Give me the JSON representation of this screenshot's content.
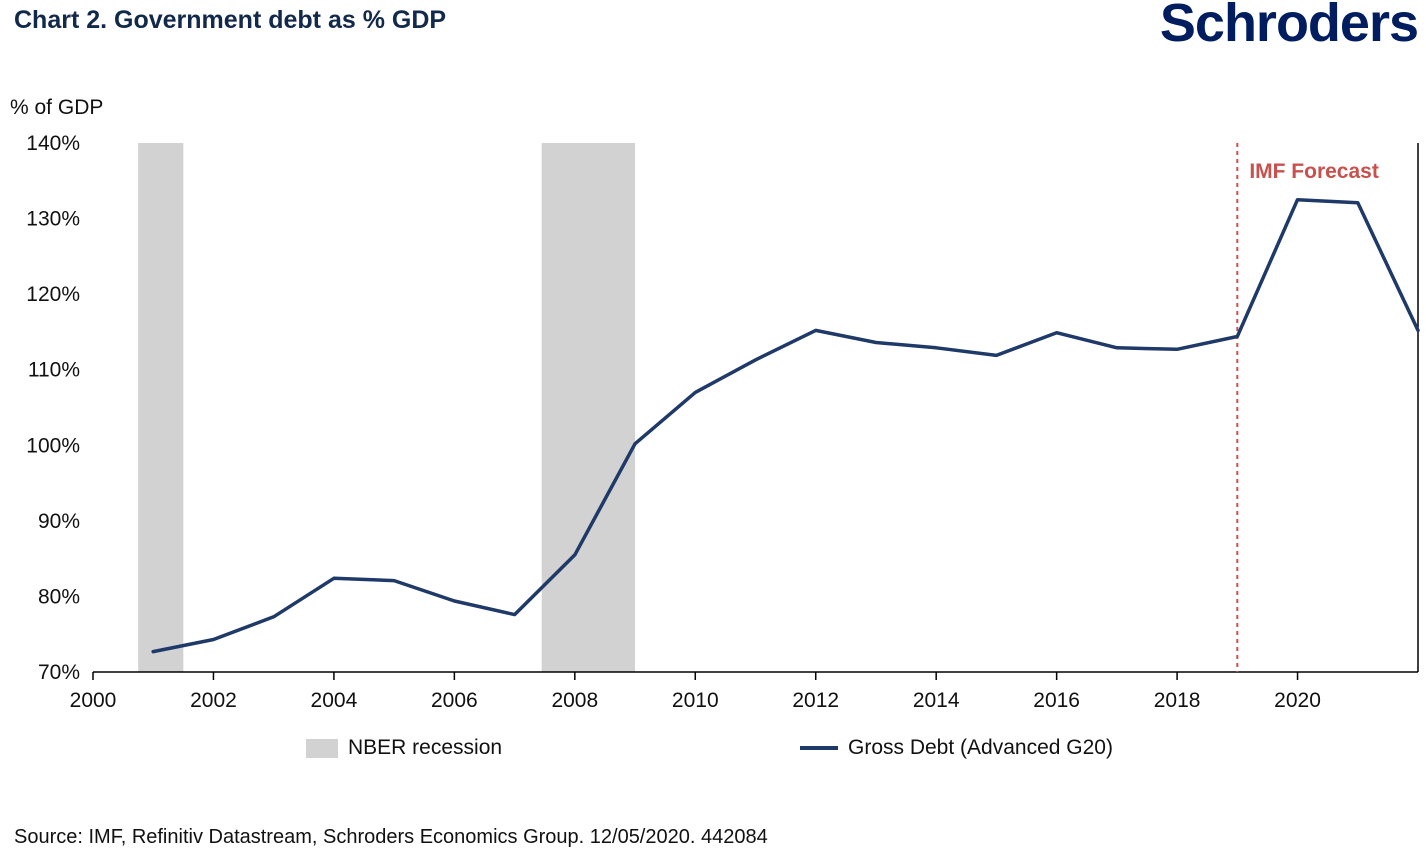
{
  "header": {
    "title": "Chart 2. Government debt as % GDP",
    "logo": "Schroders"
  },
  "chart_data": {
    "type": "line",
    "title": "Chart 2. Government debt as % GDP",
    "ylabel": "% of GDP",
    "xlabel": "",
    "xlim": [
      2000,
      2022
    ],
    "ylim": [
      70,
      140
    ],
    "y_ticks": [
      70,
      80,
      90,
      100,
      110,
      120,
      130,
      140
    ],
    "x_ticks": [
      2000,
      2002,
      2004,
      2006,
      2008,
      2010,
      2012,
      2014,
      2016,
      2018,
      2020
    ],
    "grid": false,
    "legend_position": "bottom",
    "recession_bands": [
      [
        2000.75,
        2001.5
      ],
      [
        2007.45,
        2009.0
      ]
    ],
    "forecast_line_x": 2019,
    "forecast_label": "IMF Forecast",
    "series": [
      {
        "name": "Gross Debt (Advanced G20)",
        "x": [
          2001,
          2002,
          2003,
          2004,
          2005,
          2006,
          2007,
          2008,
          2009,
          2010,
          2011,
          2012,
          2013,
          2014,
          2015,
          2016,
          2017,
          2018,
          2019,
          2020,
          2021,
          2022
        ],
        "values": [
          72.7,
          74.3,
          77.3,
          82.4,
          82.1,
          79.4,
          77.6,
          85.5,
          100.2,
          107.0,
          111.3,
          115.2,
          113.6,
          112.9,
          111.9,
          114.9,
          112.9,
          112.7,
          114.4,
          132.5,
          132.1,
          115.2
        ]
      }
    ],
    "colors": {
      "line": "#1f3a68",
      "recession": "#d2d2d2",
      "forecast": "#c9504c"
    }
  },
  "legend": {
    "items": [
      {
        "label": "NBER recession",
        "type": "band"
      },
      {
        "label": "Gross Debt (Advanced G20)",
        "type": "line"
      }
    ]
  },
  "footer": {
    "source": "Source: IMF, Refinitiv Datastream, Schroders Economics Group. 12/05/2020. 442084"
  }
}
